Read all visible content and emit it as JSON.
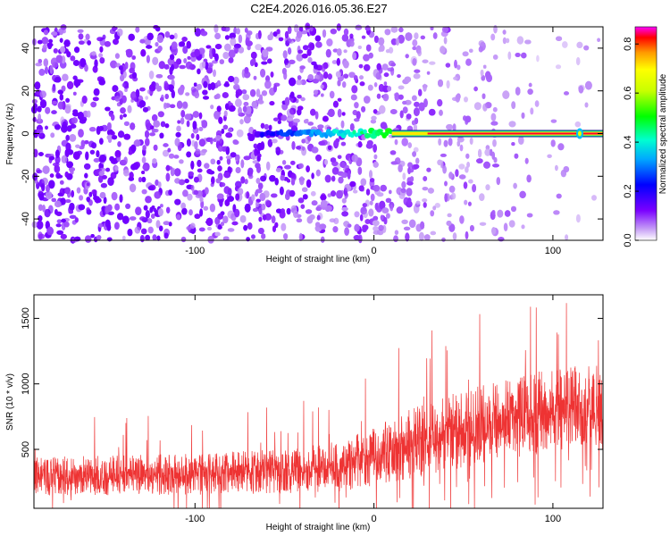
{
  "title": "C2E4.2026.016.05.36.E27",
  "chart_data": [
    {
      "type": "heatmap",
      "title": "C2E4.2026.016.05.36.E27",
      "xlabel": "Height of straight line (km)",
      "ylabel": "Frequency (Hz)",
      "xlim": [
        -190,
        128
      ],
      "ylim": [
        -50,
        50
      ],
      "x_ticks": [
        "-100",
        "0",
        "100"
      ],
      "x_tick_values": [
        -100,
        0,
        100
      ],
      "y_ticks": [
        "-40",
        "-20",
        "0",
        "20",
        "40"
      ],
      "y_tick_values": [
        -40,
        -20,
        0,
        20,
        40
      ],
      "colorbar": {
        "label": "Normalized spectral amplitude",
        "range": [
          0.0,
          0.87
        ],
        "ticks": [
          "0.0",
          "0.2",
          "0.4",
          "0.6",
          "0.8"
        ],
        "tick_values": [
          0.0,
          0.2,
          0.4,
          0.6,
          0.8
        ]
      },
      "features": {
        "signal_line_frequency": 0,
        "signal_emerges_at_height": -65,
        "strong_signal_from_height": 10,
        "spike_height": 115,
        "noise_amplitude_low_heights": 0.25,
        "noise_amplitude_high_heights": 0.05,
        "line_amplitude_max": 0.87
      }
    },
    {
      "type": "line",
      "title": "",
      "xlabel": "Height of straight line (km)",
      "ylabel": "SNR (10 * v/v)",
      "xlim": [
        -190,
        128
      ],
      "ylim": [
        50,
        1680
      ],
      "x_ticks": [
        "-100",
        "0",
        "100"
      ],
      "x_tick_values": [
        -100,
        0,
        100
      ],
      "y_ticks": [
        "500",
        "1000",
        "1500"
      ],
      "y_tick_values": [
        500,
        1000,
        1500
      ],
      "series": [
        {
          "name": "SNR",
          "color": "#ee3333",
          "envelope_x": [
            -190,
            -150,
            -100,
            -50,
            -20,
            0,
            20,
            40,
            60,
            80,
            100,
            115,
            128
          ],
          "envelope_low": [
            120,
            120,
            125,
            130,
            140,
            170,
            220,
            280,
            330,
            380,
            420,
            440,
            440
          ],
          "envelope_mid": [
            290,
            300,
            310,
            330,
            360,
            440,
            540,
            620,
            690,
            740,
            780,
            800,
            800
          ],
          "envelope_high": [
            470,
            480,
            500,
            540,
            600,
            720,
            860,
            960,
            1050,
            1120,
            1180,
            1220,
            1230
          ]
        }
      ]
    }
  ]
}
